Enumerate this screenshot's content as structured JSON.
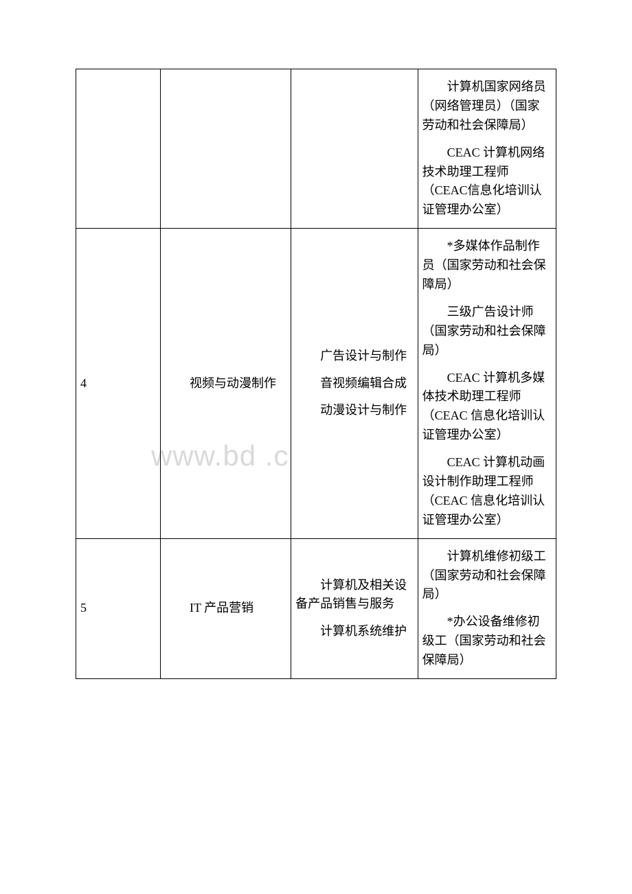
{
  "watermark": "www.bd  .c",
  "rows": [
    {
      "c1": "",
      "c2": "",
      "c3": "",
      "c4_paras": [
        "计算机国家网络员（网络管理员）（国家劳动和社会保障局）",
        "CEAC 计算机网络技术助理工程师（CEAC信息化培训认证管理办公室）"
      ]
    },
    {
      "c1": "4",
      "c2_paras": [
        "视频与动漫制作"
      ],
      "c3_paras": [
        "广告设计与制作",
        "音视频编辑合成",
        "动漫设计与制作"
      ],
      "c4_paras": [
        "*多媒体作品制作员（国家劳动和社会保障局）",
        "三级广告设计师（国家劳动和社会保障局）",
        "CEAC 计算机多媒体技术助理工程师（CEAC 信息化培训认证管理办公室）",
        "CEAC 计算机动画设计制作助理工程师（CEAC 信息化培训认证管理办公室）"
      ]
    },
    {
      "c1": "5",
      "c2_paras": [
        "IT 产品营销"
      ],
      "c3_paras": [
        "计算机及相关设备产品销售与服务",
        "计算机系统维护"
      ],
      "c4_paras": [
        "计算机维修初级工（国家劳动和社会保障局）",
        "*办公设备维修初级工（国家劳动和社会保障局）"
      ]
    }
  ]
}
